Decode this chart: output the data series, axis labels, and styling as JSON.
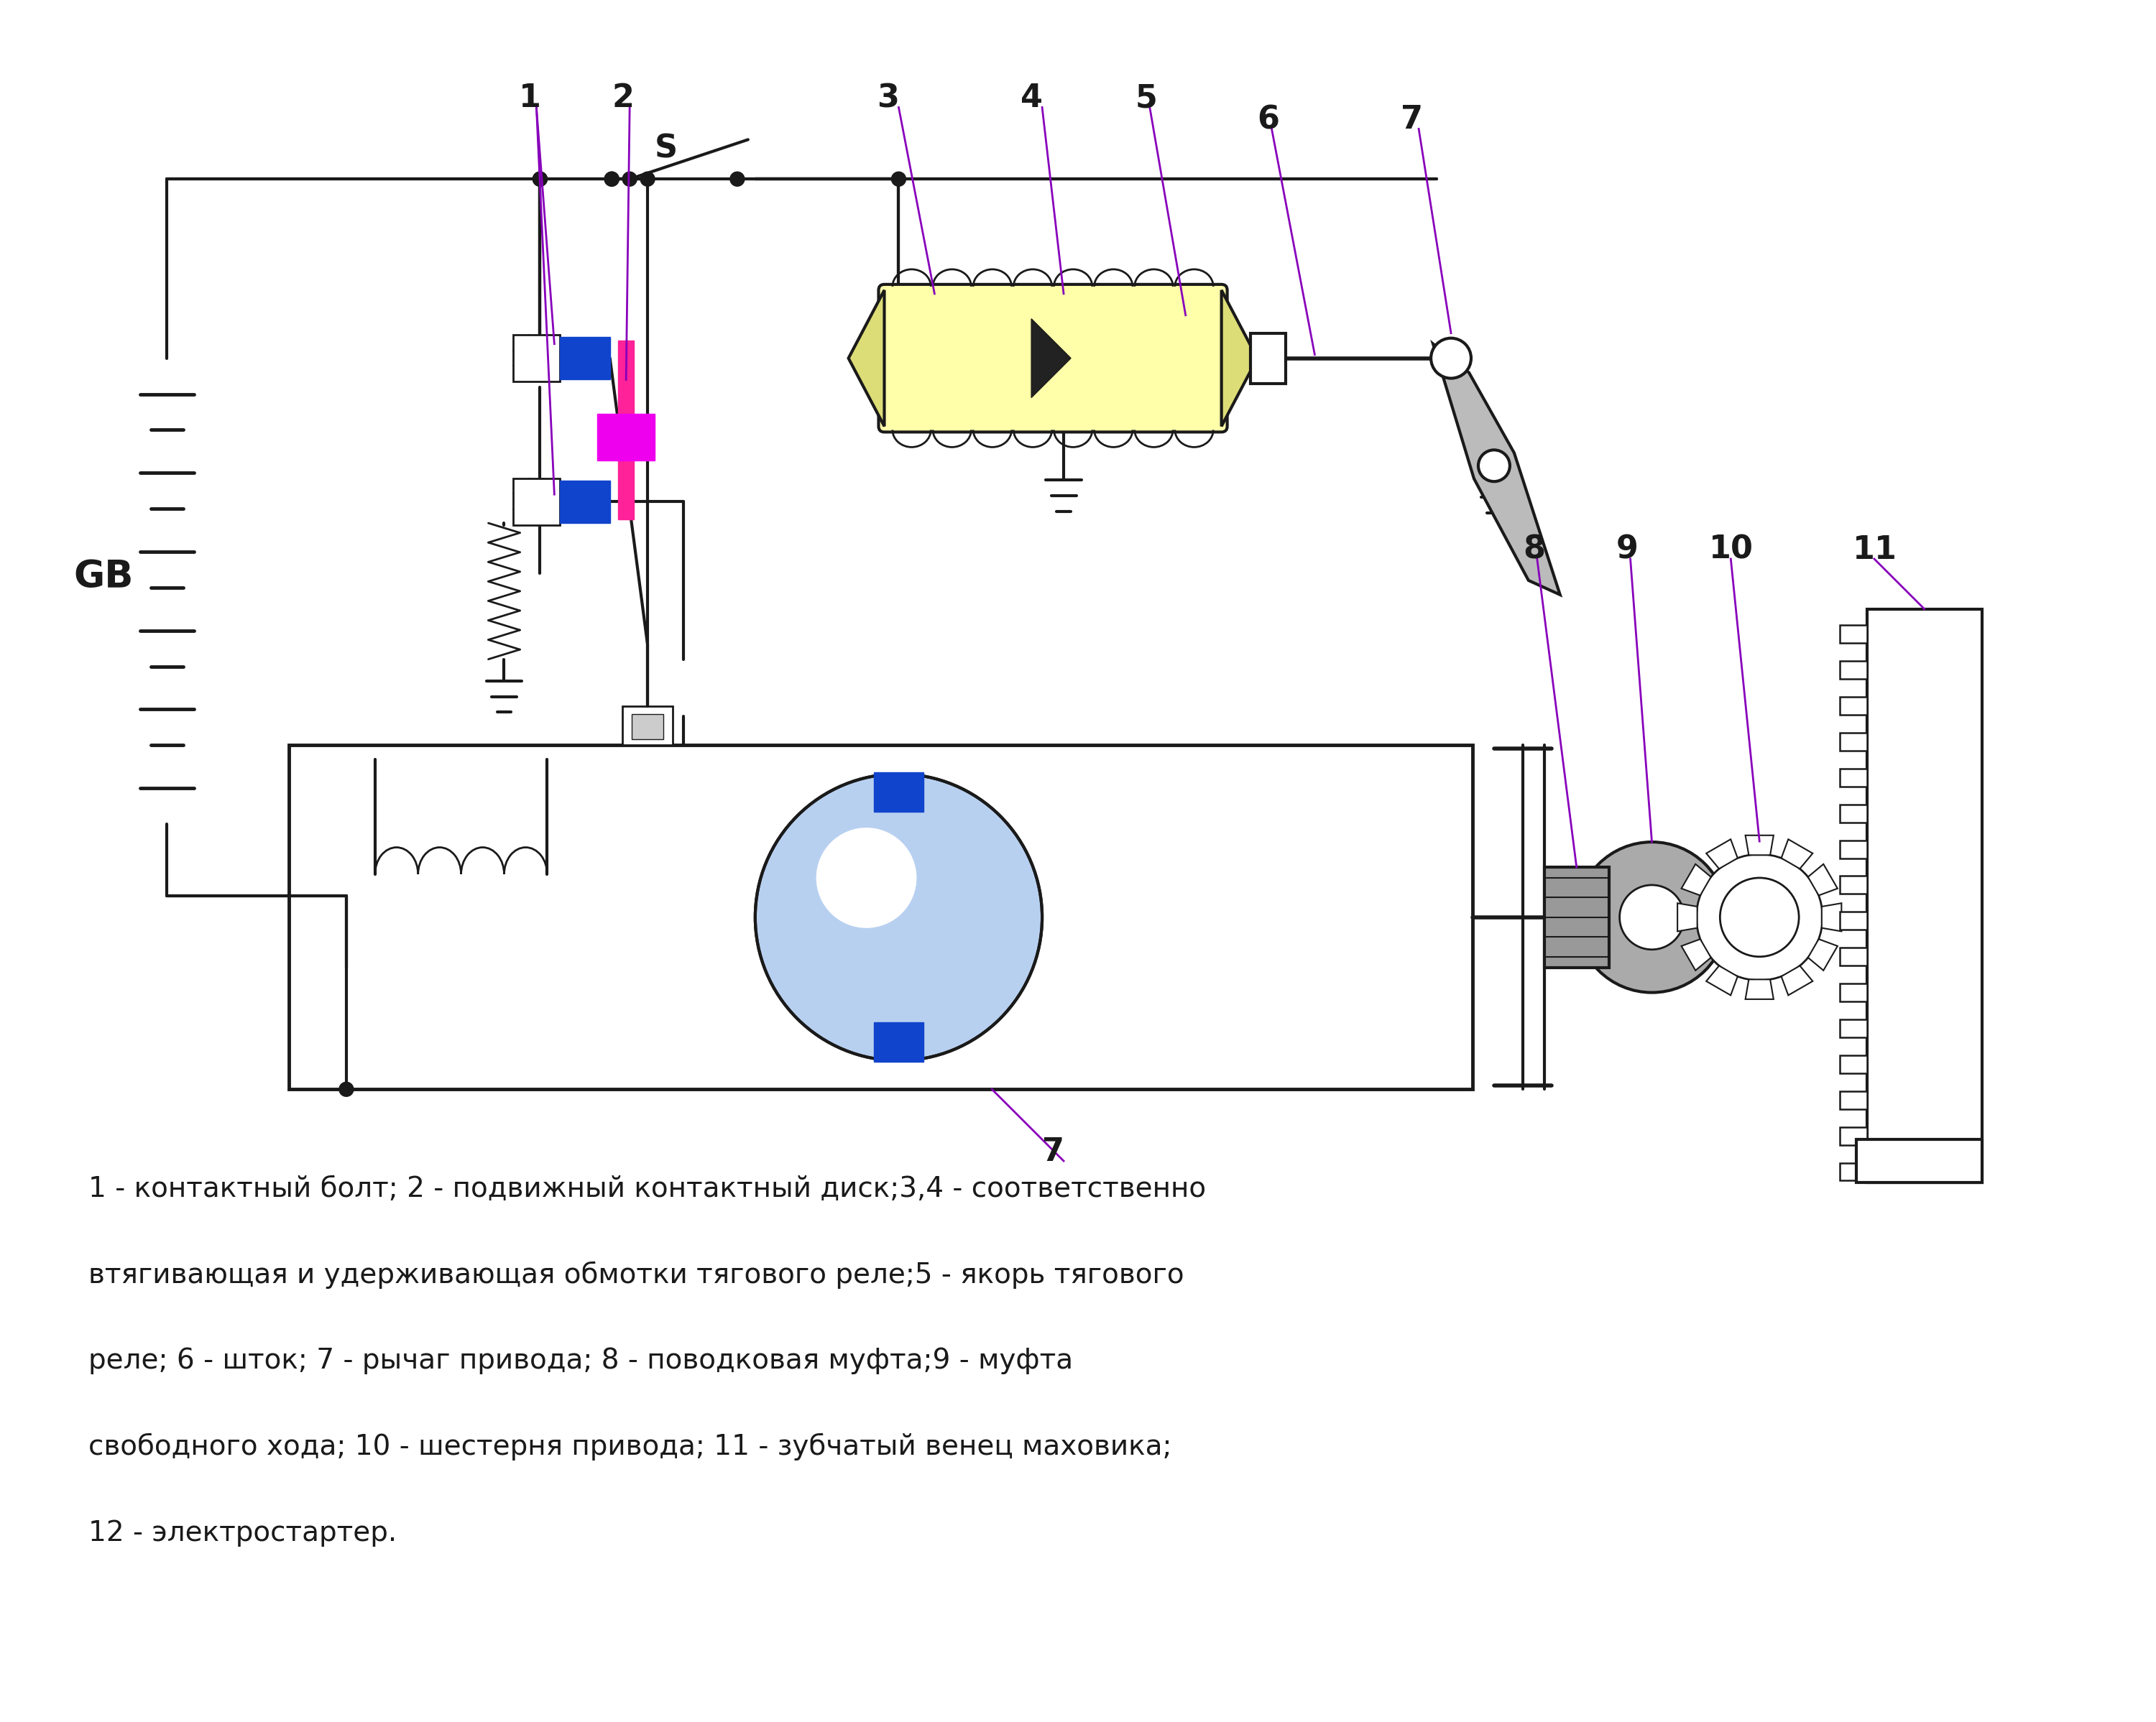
{
  "bg_color": "#ffffff",
  "line_color": "#1a1a1a",
  "purple_color": "#8800bb",
  "pink_color": "#ff2299",
  "magenta_color": "#ee00ee",
  "blue_color": "#1144cc",
  "yellow_light": "#ffffaa",
  "yellow_dark": "#dddd77",
  "gray_light": "#bbbbbb",
  "gray_dark": "#888888",
  "light_blue_color": "#b8d0f0",
  "caption_line1": "1 - контактный болт; 2 - подвижный контактный диск;3,4 - соответственно",
  "caption_line2": "втягивающая и удерживающая обмотки тягового реле;5 - якорь тягового",
  "caption_line3": "реле; 6 - шток; 7 - рычаг привода; 8 - поводковая муфта;9 - муфта",
  "caption_line4": "свободного хода; 10 - шестерня привода; 11 - зубчатый венец маховика;",
  "caption_line5": "12 - электростартер.",
  "font_size_caption": 28,
  "font_size_label": 32
}
